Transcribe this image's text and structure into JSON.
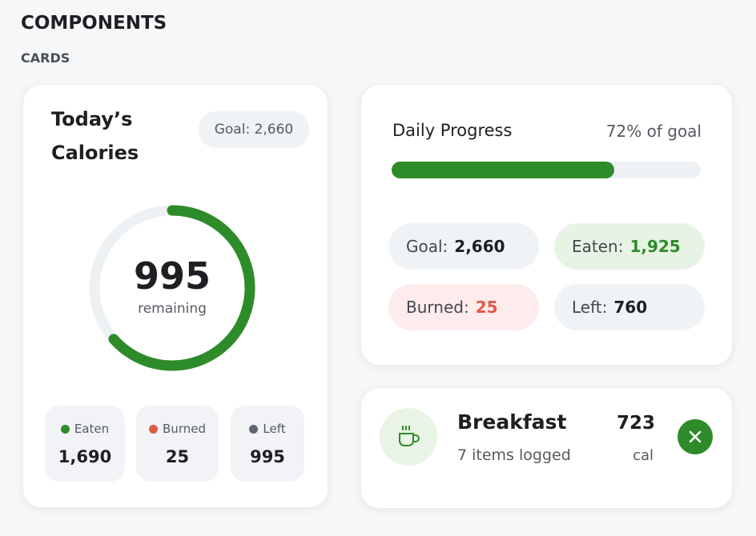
{
  "header": {
    "title": "COMPONENTS",
    "subtitle": "CARDS"
  },
  "calories_card": {
    "title": "Today’s Calories",
    "goal": "Goal: 2,660",
    "ring": {
      "value": "995",
      "label": "remaining"
    },
    "stats": [
      {
        "label": "Eaten",
        "value": "1,690"
      },
      {
        "label": "Burned",
        "value": "25"
      },
      {
        "label": "Left",
        "value": "995"
      }
    ]
  },
  "progress_card": {
    "title": "Daily Progress",
    "progress": {
      "value": 72,
      "label": "72% of goal"
    },
    "stats": [
      {
        "label": "Goal:",
        "value": "2,660"
      },
      {
        "label": "Eaten:",
        "value": "1,925"
      },
      {
        "label": "Burned:",
        "value": "25"
      },
      {
        "label": "Left:",
        "value": "760"
      }
    ]
  },
  "meal_card": {
    "title": "Breakfast",
    "subtitle": "7 items logged",
    "calories": "723",
    "unit": "cal"
  }
}
